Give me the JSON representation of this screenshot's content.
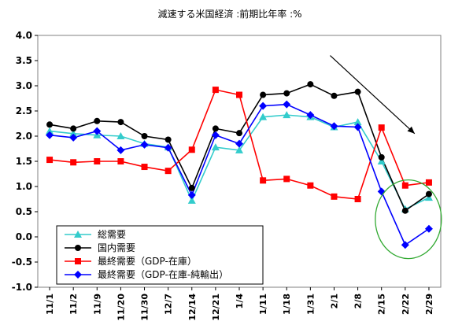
{
  "chart_data": {
    "type": "line",
    "title": "減速する米国経済 :前期比年率 :%",
    "xlabel": "",
    "ylabel": "",
    "categories": [
      "11/1",
      "11/2",
      "11/9",
      "11/20",
      "11/30",
      "12/7",
      "12/14",
      "12/21",
      "1/4",
      "1/11",
      "1/18",
      "1/31",
      "2/1",
      "2/8",
      "2/15",
      "2/22",
      "2/29"
    ],
    "ylim": [
      -1.0,
      4.0
    ],
    "yticks": [
      "4.0",
      "3.5",
      "3.0",
      "2.5",
      "2.0",
      "1.5",
      "1.0",
      "0.5",
      "0.0",
      "-0.5",
      "-1.0"
    ],
    "grid": false,
    "legend_position": "bottom-left",
    "series": [
      {
        "name": "総需要",
        "color": "#33cccc",
        "marker": "triangle",
        "values": [
          2.1,
          2.05,
          2.02,
          2.0,
          1.85,
          1.78,
          0.72,
          1.78,
          1.72,
          2.38,
          2.42,
          2.38,
          2.18,
          2.28,
          1.5,
          0.55,
          0.78
        ]
      },
      {
        "name": "国内需要",
        "color": "#000000",
        "marker": "circle",
        "values": [
          2.23,
          2.15,
          2.3,
          2.28,
          2.0,
          1.93,
          0.97,
          2.15,
          2.06,
          2.82,
          2.85,
          3.03,
          2.8,
          2.88,
          1.58,
          0.52,
          0.85
        ]
      },
      {
        "name": "最終需要（GDP-在庫）",
        "color": "#ff0000",
        "marker": "square",
        "values": [
          1.53,
          1.48,
          1.5,
          1.5,
          1.39,
          1.31,
          1.73,
          2.92,
          2.82,
          1.12,
          1.15,
          1.02,
          0.8,
          0.75,
          2.17,
          1.02,
          1.08
        ]
      },
      {
        "name": "最終需要（GDP-在庫-純輸出）",
        "color": "#0000ff",
        "marker": "diamond",
        "values": [
          2.02,
          1.97,
          2.1,
          1.72,
          1.83,
          1.77,
          0.83,
          2.02,
          1.85,
          2.6,
          2.63,
          2.42,
          2.2,
          2.18,
          0.9,
          -0.16,
          0.16
        ]
      }
    ],
    "annotations": [
      {
        "type": "arrow",
        "from": [
          "2/1",
          3.6
        ],
        "to": [
          "2/22",
          2.05
        ],
        "color": "#000000"
      },
      {
        "type": "ellipse",
        "center": [
          "2/22",
          0.35
        ],
        "color": "#33aa33"
      }
    ]
  }
}
